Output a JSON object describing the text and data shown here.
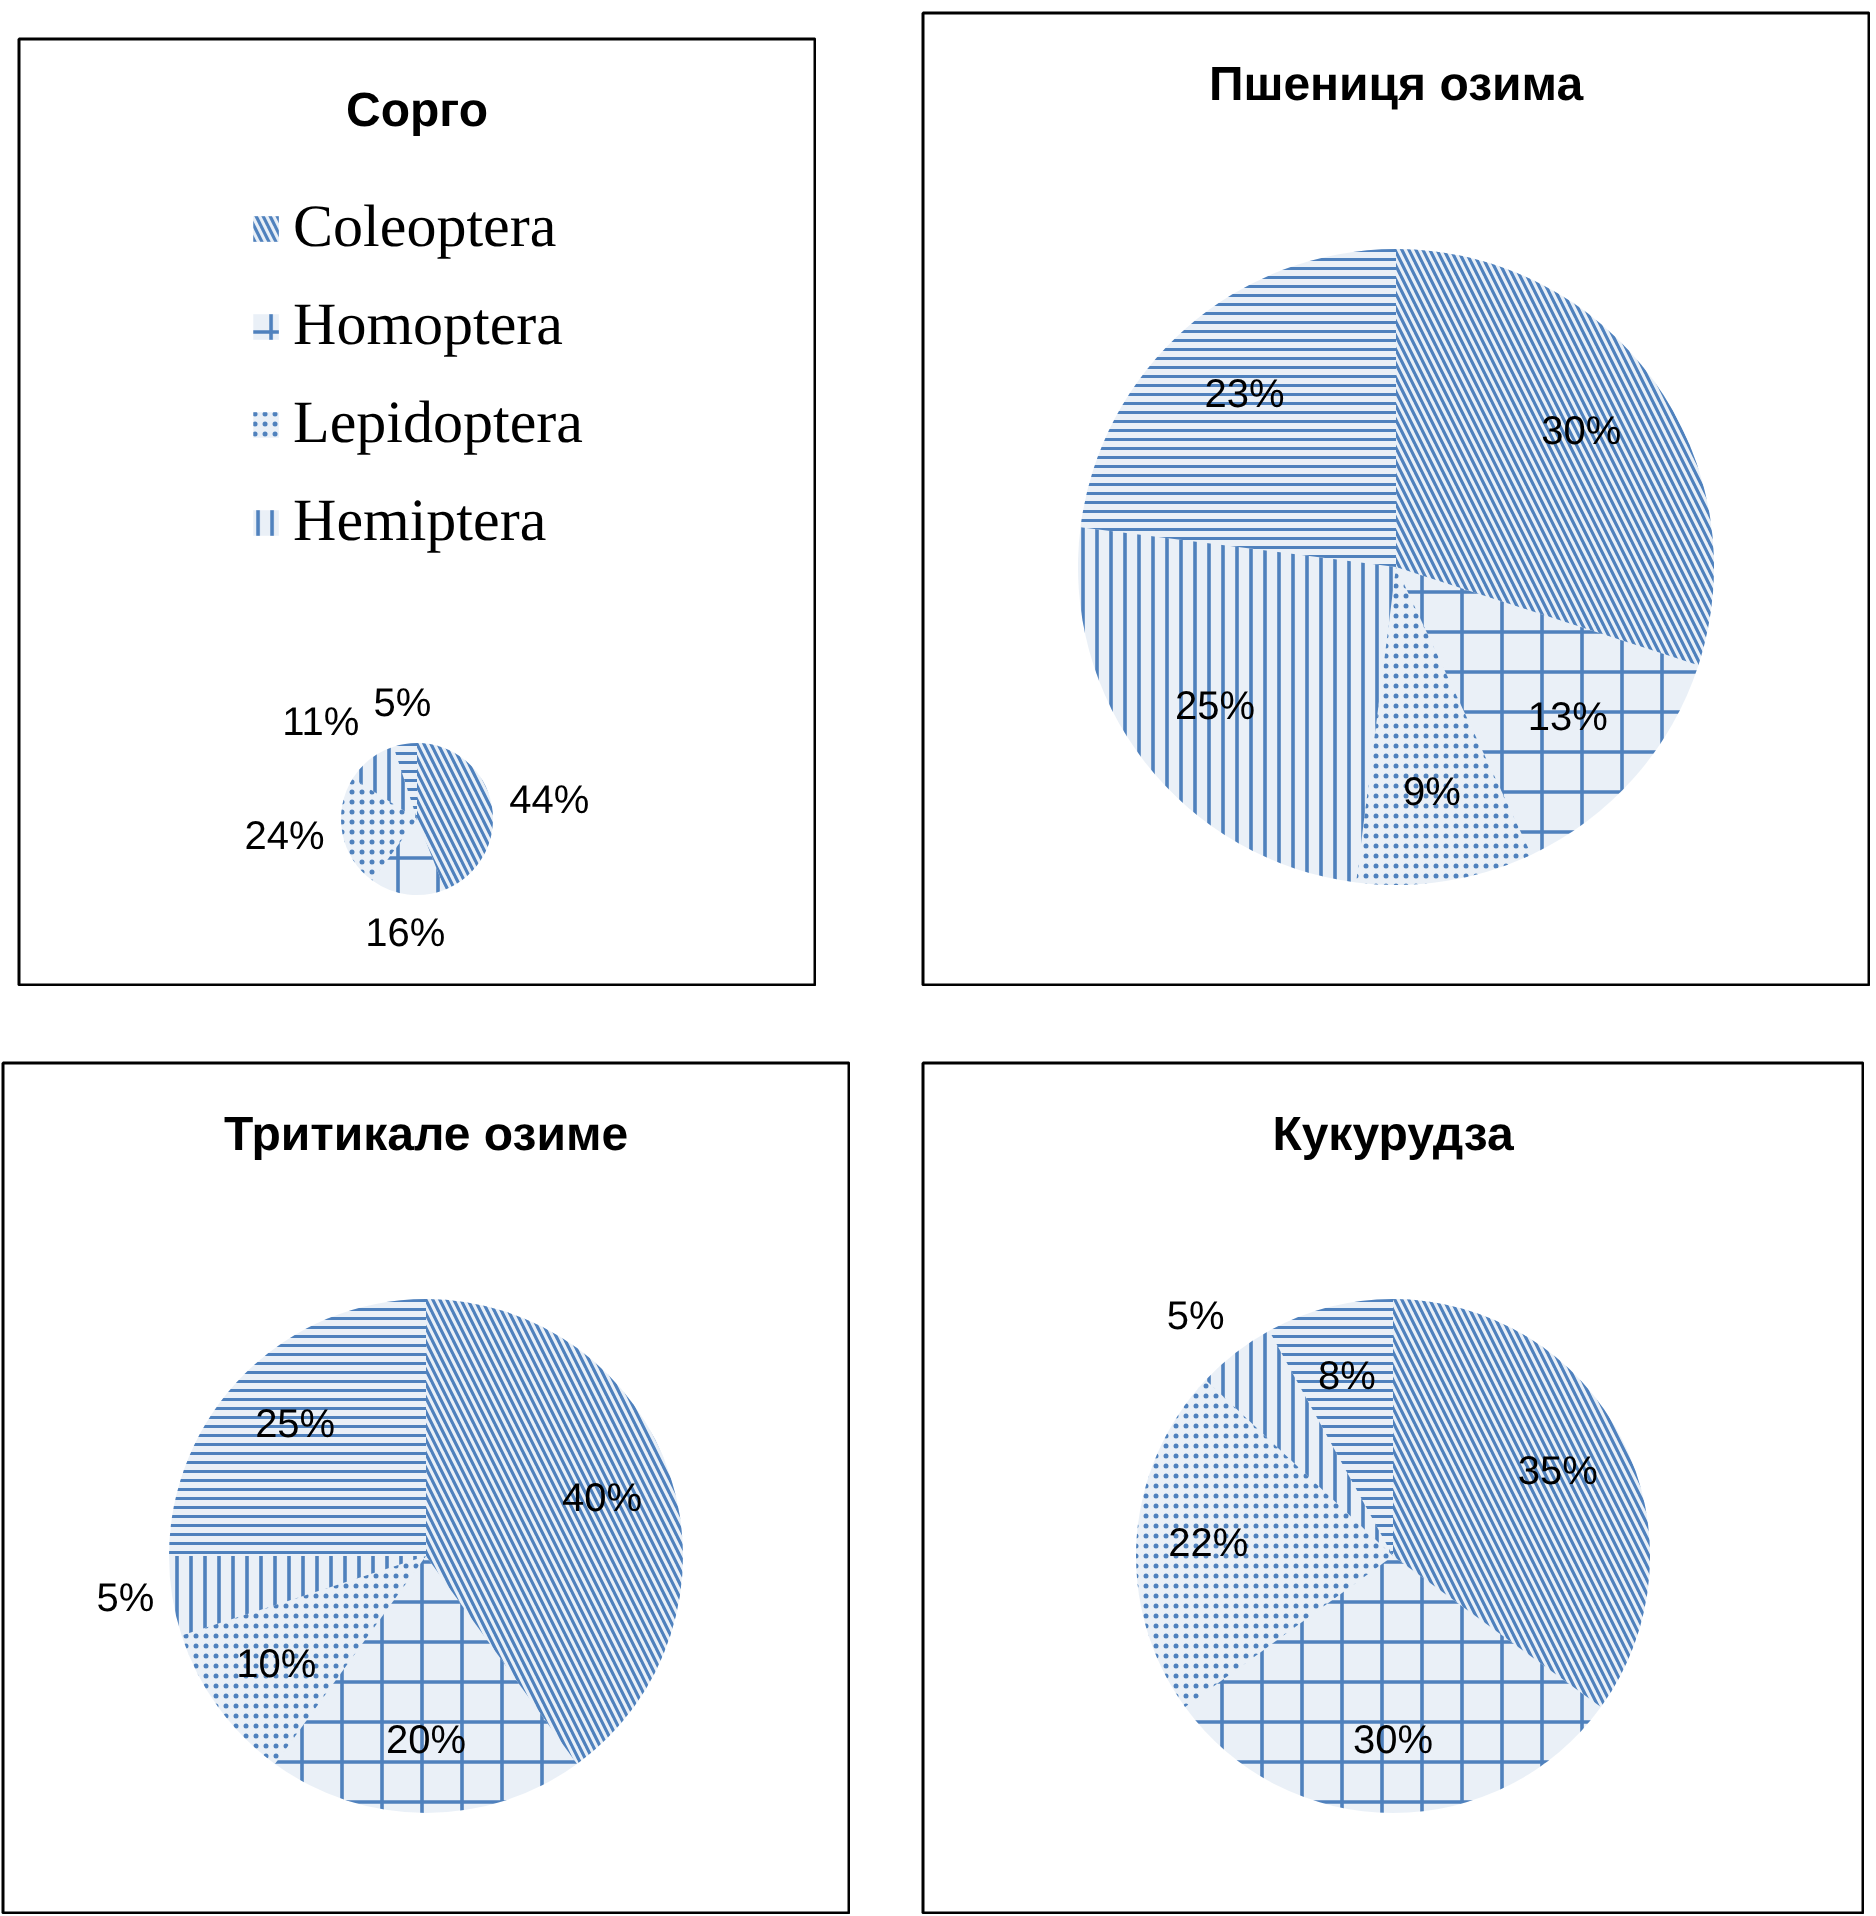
{
  "chart_data": [
    {
      "type": "pie",
      "title": "Сорго",
      "categories": [
        "Coleoptera",
        "Homoptera",
        "Lepidoptera",
        "Hemiptera",
        null
      ],
      "values": [
        44,
        16,
        24,
        11,
        5
      ],
      "colors": [
        "#4f81bd",
        "#4f81bd",
        "#4f81bd",
        "#4f81bd",
        "#4f81bd"
      ],
      "value_labels": [
        "44%",
        "16%",
        "24%",
        "11%",
        "5%"
      ],
      "legend": "top"
    },
    {
      "type": "pie",
      "title": "Пшениця озима",
      "categories": [
        null,
        null,
        null,
        null,
        null
      ],
      "values": [
        30,
        13,
        9,
        25,
        23
      ],
      "colors": [
        "#4f81bd",
        "#4f81bd",
        "#4f81bd",
        "#4f81bd",
        "#4f81bd"
      ],
      "value_labels": [
        "30%",
        "13%",
        "9%",
        "25%",
        "23%"
      ]
    },
    {
      "type": "pie",
      "title": "Тритикале озиме",
      "categories": [
        null,
        null,
        null,
        null,
        null
      ],
      "values": [
        40,
        20,
        10,
        5,
        25
      ],
      "colors": [
        "#4f81bd",
        "#4f81bd",
        "#4f81bd",
        "#4f81bd",
        "#4f81bd"
      ],
      "value_labels": [
        "40%",
        "20%",
        "10%",
        "5%",
        "25%"
      ]
    },
    {
      "type": "pie",
      "title": "Кукурудза",
      "categories": [
        null,
        null,
        null,
        null,
        null
      ],
      "values": [
        35,
        30,
        22,
        5,
        8
      ],
      "colors": [
        "#4f81bd",
        "#4f81bd",
        "#4f81bd",
        "#4f81bd",
        "#4f81bd"
      ],
      "value_labels": [
        "35%",
        "30%",
        "22%",
        "5%",
        "8%"
      ]
    }
  ]
}
